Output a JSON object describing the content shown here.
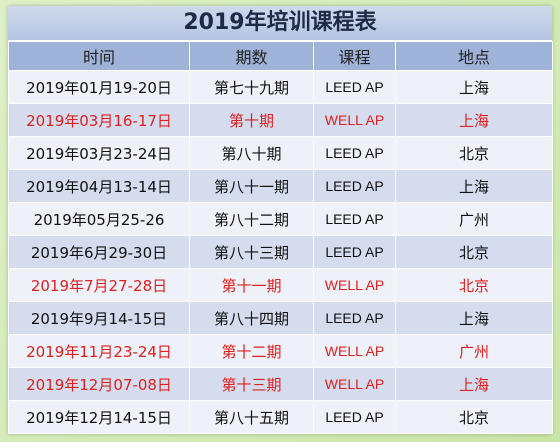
{
  "title": "2019年培训课程表",
  "headers": [
    "时间",
    "期数",
    "课程",
    "地点"
  ],
  "colors": {
    "highlight_text": "#e02020",
    "header_bg": "#9fb2d8",
    "row_light": "#eef1f8",
    "row_dark": "#d4dcee"
  },
  "rows": [
    {
      "date": "2019年01月19-20日",
      "session": "第七十九期",
      "course": "LEED AP",
      "location": "上海",
      "highlight": false
    },
    {
      "date": "2019年03月16-17日",
      "session": "第十期",
      "course": "WELL AP",
      "location": "上海",
      "highlight": true
    },
    {
      "date": "2019年03月23-24日",
      "session": "第八十期",
      "course": "LEED AP",
      "location": "北京",
      "highlight": false
    },
    {
      "date": "2019年04月13-14日",
      "session": "第八十一期",
      "course": "LEED AP",
      "location": "上海",
      "highlight": false
    },
    {
      "date": "2019年05月25-26",
      "session": "第八十二期",
      "course": "LEED AP",
      "location": "广州",
      "highlight": false
    },
    {
      "date": "2019年6月29-30日",
      "session": "第八十三期",
      "course": "LEED AP",
      "location": "北京",
      "highlight": false
    },
    {
      "date": "2019年7月27-28日",
      "session": "第十一期",
      "course": "WELL AP",
      "location": "北京",
      "highlight": true
    },
    {
      "date": "2019年9月14-15日",
      "session": "第八十四期",
      "course": "LEED AP",
      "location": "上海",
      "highlight": false
    },
    {
      "date": "2019年11月23-24日",
      "session": "第十二期",
      "course": "WELL AP",
      "location": "广州",
      "highlight": true
    },
    {
      "date": "2019年12月07-08日",
      "session": "第十三期",
      "course": "WELL AP",
      "location": "上海",
      "highlight": true
    },
    {
      "date": "2019年12月14-15日",
      "session": "第八十五期",
      "course": "LEED AP",
      "location": "北京",
      "highlight": false
    }
  ]
}
